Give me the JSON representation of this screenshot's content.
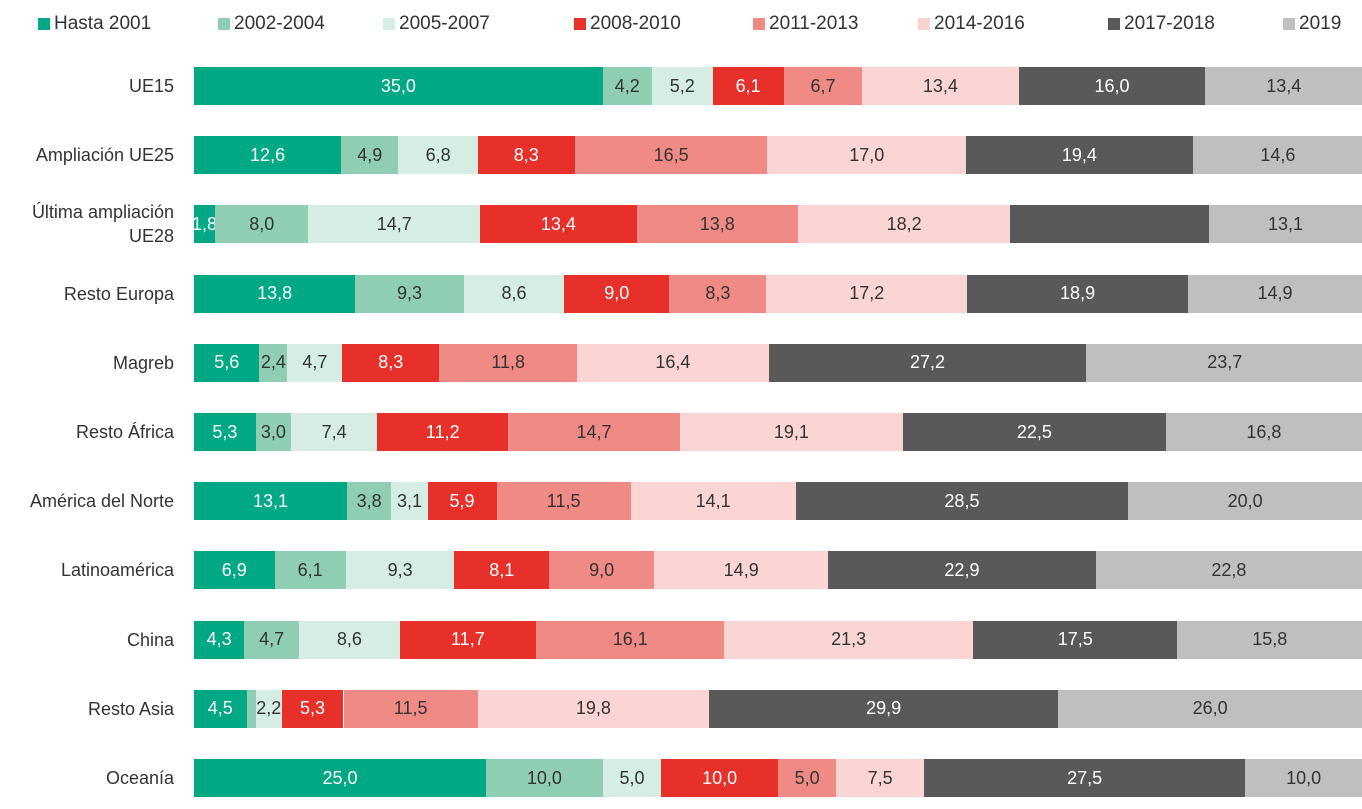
{
  "chart_data": {
    "type": "stacked-bar-horizontal",
    "categories": [
      "UE15",
      "Ampliación UE25",
      "Última ampliación UE28",
      "Resto Europa",
      "Magreb",
      "Resto África",
      "América del Norte",
      "Latinoamérica",
      "China",
      "Resto Asia",
      "Oceanía"
    ],
    "xlim": [
      0,
      100
    ],
    "series": [
      {
        "name": "Hasta 2001",
        "color": "#00a884",
        "values": [
          35.0,
          12.6,
          1.8,
          13.8,
          5.6,
          5.3,
          13.1,
          6.9,
          4.3,
          4.5,
          25.0
        ],
        "value_labels": [
          "35,0",
          "12,6",
          "1,8",
          "13,8",
          "5,6",
          "5,3",
          "13,1",
          "6,9",
          "4,3",
          "4,5",
          "25,0"
        ]
      },
      {
        "name": "2002-2004",
        "color": "#8fceb2",
        "values": [
          4.2,
          4.9,
          8.0,
          9.3,
          2.4,
          3.0,
          3.8,
          6.1,
          4.7,
          0.8,
          10.0
        ],
        "value_labels": [
          "4,2",
          "4,9",
          "8,0",
          "9,3",
          "2,4",
          "3,0",
          "3,8",
          "6,1",
          "4,7",
          null,
          "10,0"
        ]
      },
      {
        "name": "2005-2007",
        "color": "#d5ede3",
        "values": [
          5.2,
          6.8,
          14.7,
          8.6,
          4.7,
          7.4,
          3.1,
          9.3,
          8.6,
          2.2,
          5.0
        ],
        "value_labels": [
          "5,2",
          "6,8",
          "14,7",
          "8,6",
          "4,7",
          "7,4",
          "3,1",
          "9,3",
          "8,6",
          "2,2",
          "5,0"
        ]
      },
      {
        "name": "2008-2010",
        "color": "#e8302a",
        "values": [
          6.1,
          8.3,
          13.4,
          9.0,
          8.3,
          11.2,
          5.9,
          8.1,
          11.7,
          5.3,
          10.0
        ],
        "value_labels": [
          "6,1",
          "8,3",
          "13,4",
          "9,0",
          "8,3",
          "11,2",
          "5,9",
          "8,1",
          "11,7",
          "5,3",
          "10,0"
        ]
      },
      {
        "name": "2011-2013",
        "color": "#f08a84",
        "values": [
          6.7,
          16.5,
          13.8,
          8.3,
          11.8,
          14.7,
          11.5,
          9.0,
          16.1,
          11.5,
          5.0
        ],
        "value_labels": [
          "6,7",
          "16,5",
          "13,8",
          "8,3",
          "11,8",
          "14,7",
          "11,5",
          "9,0",
          "16,1",
          "11,5",
          "5,0"
        ]
      },
      {
        "name": "2014-2016",
        "color": "#fbd5d3",
        "values": [
          13.4,
          17.0,
          18.2,
          17.2,
          16.4,
          19.1,
          14.1,
          14.9,
          21.3,
          19.8,
          7.5
        ],
        "value_labels": [
          "13,4",
          "17,0",
          "18,2",
          "17,2",
          "16,4",
          "19,1",
          "14,1",
          "14,9",
          "21,3",
          "19,8",
          "7,5"
        ]
      },
      {
        "name": "2017-2018",
        "color": "#595959",
        "values": [
          16.0,
          19.4,
          17.0,
          18.9,
          27.2,
          22.5,
          28.5,
          22.9,
          17.5,
          29.9,
          27.5
        ],
        "value_labels": [
          "16,0",
          "19,4",
          null,
          "18,9",
          "27,2",
          "22,5",
          "28,5",
          "22,9",
          "17,5",
          "29,9",
          "27,5"
        ]
      },
      {
        "name": "2019",
        "color": "#bfbfbf",
        "values": [
          13.4,
          14.6,
          13.1,
          14.9,
          23.7,
          16.8,
          20.0,
          22.8,
          15.8,
          26.0,
          10.0
        ],
        "value_labels": [
          "13,4",
          "14,6",
          "13,1",
          "14,9",
          "23,7",
          "16,8",
          "20,0",
          "22,8",
          "15,8",
          "26,0",
          "10,0"
        ]
      }
    ]
  }
}
